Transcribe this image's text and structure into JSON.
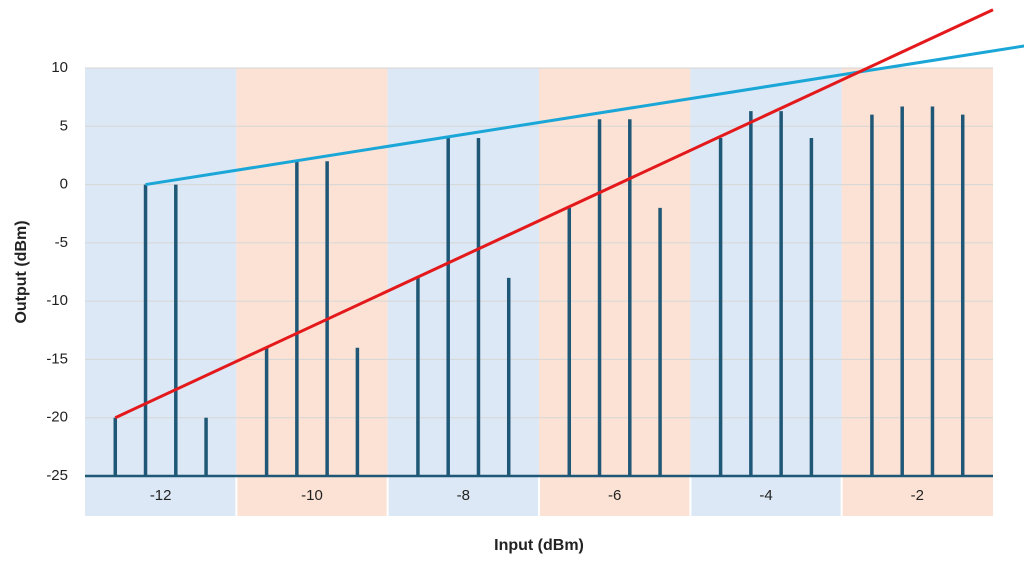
{
  "chart_data": {
    "type": "line",
    "xlabel": "Input (dBm)",
    "ylabel": "Output (dBm)",
    "xlim": [
      -13,
      -1
    ],
    "ylim": [
      -25,
      10
    ],
    "yticks": [
      -25,
      -20,
      -15,
      -10,
      -5,
      0,
      5,
      10
    ],
    "grid": true,
    "bands": {
      "centers": [
        -12,
        -10,
        -8,
        -6,
        -4,
        -2
      ],
      "width": 2,
      "colors": [
        "#dce8f5",
        "#fbe2d5"
      ]
    },
    "series": [
      {
        "mark": "stem",
        "color": "#1f5877",
        "x": [
          -12.6,
          -12.2,
          -11.8,
          -11.4,
          -10.6,
          -10.2,
          -9.8,
          -9.4,
          -8.6,
          -8.2,
          -7.8,
          -7.4,
          -6.6,
          -6.2,
          -5.8,
          -5.4,
          -4.6,
          -4.2,
          -3.8,
          -3.4,
          -2.6,
          -2.2,
          -1.8,
          -1.4
        ],
        "values": [
          -20,
          0,
          0,
          -20,
          -14,
          2,
          2,
          -14,
          -8,
          4,
          4,
          -8,
          -2,
          5.6,
          5.6,
          -2,
          4,
          6.3,
          6.3,
          4,
          6,
          6.7,
          6.7,
          6
        ]
      },
      {
        "mark": "line",
        "color": "#1aa7d8",
        "x": [
          -12.2,
          -0.48
        ],
        "values": [
          0,
          12
        ]
      },
      {
        "mark": "line",
        "color": "#e3191c",
        "x": [
          -12.6,
          -1
        ],
        "values": [
          -20,
          15
        ]
      }
    ]
  }
}
